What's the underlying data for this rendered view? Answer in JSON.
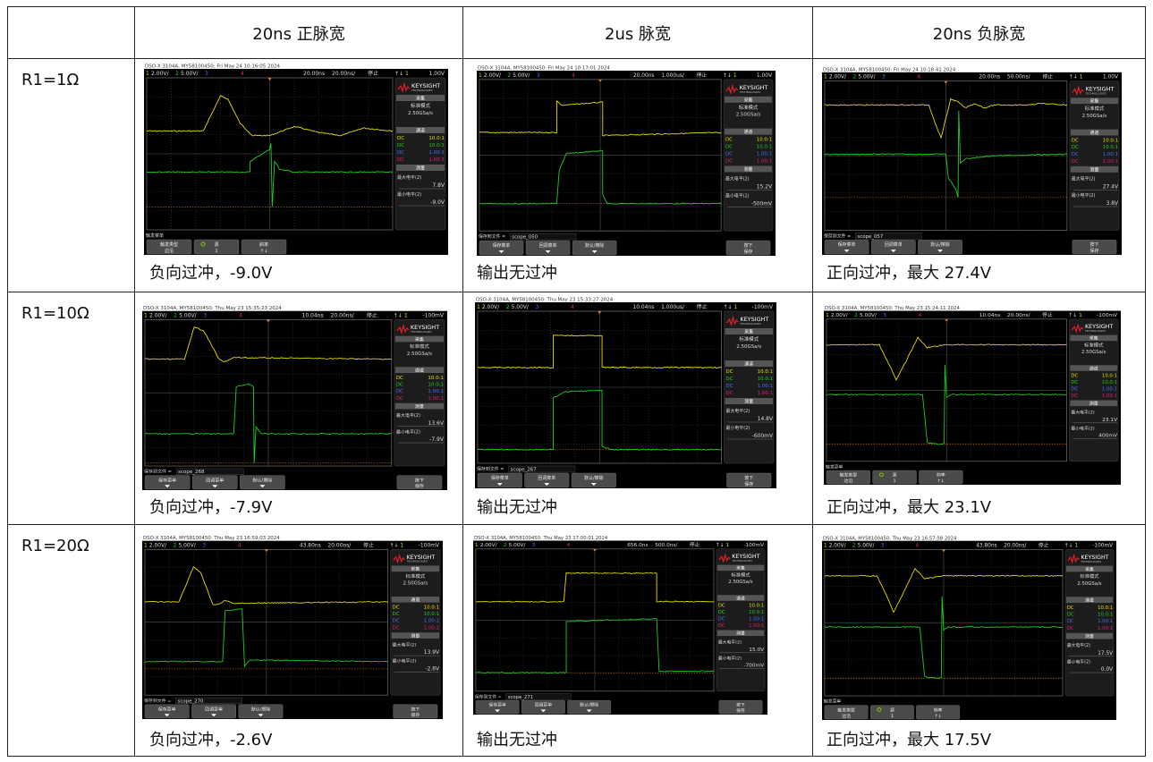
{
  "table": {
    "columns": [
      "",
      "20ns 正脉宽",
      "2us 脉宽",
      "20ns 负脉宽"
    ],
    "rows": [
      {
        "label": "R1=1Ω",
        "captions": [
          "负向过冲，-9.0V",
          "输出无过冲",
          "正向过冲，最大 27.4V"
        ]
      },
      {
        "label": "R1=10Ω",
        "captions": [
          "负向过冲，-7.9V",
          "输出无过冲",
          "正向过冲，最大 23.1V"
        ]
      },
      {
        "label": "R1=20Ω",
        "captions": [
          "负向过冲，-2.6V",
          "输出无过冲",
          "正向过冲，最大 17.5V"
        ]
      }
    ]
  },
  "scope_common": {
    "ch1_num": "1",
    "ch2_num": "2",
    "ch3_num": "3",
    "ch4_num": "4",
    "ch1_scale": "2.00V/",
    "ch2_scale": "5.00V/",
    "run_state": "停止",
    "trig_slope": "↑↓",
    "trig_ch": "1",
    "brand": "KEYSIGHT",
    "brand_sub": "TECHNOLOGIES",
    "acq_title": "采集",
    "acq_mode": "标准模式",
    "sample_rate": "2.50GSa/s",
    "channel_title": "通道",
    "channels": [
      {
        "coupling": "DC",
        "probe": "10.0:1",
        "color": "#e8e000"
      },
      {
        "coupling": "DC",
        "probe": "10.0:1",
        "color": "#22d022"
      },
      {
        "coupling": "DC",
        "probe": "1.00:1",
        "color": "#4a6cff"
      },
      {
        "coupling": "DC",
        "probe": "1.00:1",
        "color": "#e0207a"
      }
    ],
    "meas_title": "测量",
    "max_label": "最大电平(2)",
    "min_label": "最小电平(2)",
    "save_menu": {
      "file_label": "保存到文件 =",
      "keys": [
        "保存菜单",
        "回调菜单",
        "默认/擦除"
      ],
      "right_top": "按下",
      "right_bottom": "保存"
    },
    "trig_menu": {
      "title": "触发菜单",
      "keys": [
        [
          "触发类型",
          "边沿"
        ],
        [
          "源",
          "1"
        ],
        [
          "斜率",
          "↑↓"
        ]
      ]
    },
    "colors": {
      "ch1": "#e8e000",
      "ch2": "#22d022",
      "ground_ref": "#c06000"
    }
  },
  "scopes": [
    {
      "header": "DSO-X 3104A, MY58100450: Fri May 24 10:16:05 2024",
      "delay": "20.00ns",
      "time_div": "20.00ns/",
      "trig_level": "1.00V",
      "max": "7.8V",
      "min": "-9.0V",
      "menu": "trigger"
    },
    {
      "header": "DSO-X 3104A, MY58100450: Fri May 24 10:17:01 2024",
      "delay": "20.00ns",
      "time_div": "1.000us/",
      "trig_level": "1.00V",
      "max": "15.2V",
      "min": "-500mV",
      "menu": "save",
      "file": "scope_050"
    },
    {
      "header": "DSO-X 3104A, MY58100450: Fri May 24 10:18:41 2024",
      "delay": "20.00ns",
      "time_div": "50.00ns/",
      "trig_level": "1.00V",
      "max": "27.4V",
      "min": "3.8V",
      "menu": "save",
      "file": "scope_057"
    },
    {
      "header": "DSO-X 3104A, MY58100450: Thu May 23 15:35:23 2024",
      "delay": "10.04ns",
      "time_div": "20.00ns/",
      "trig_level": "-100mV",
      "max": "13.6V",
      "min": "-7.9V",
      "menu": "save",
      "file": "scope_268"
    },
    {
      "header": "DSO-X 3104A, MY58100450: Thu May 23 15:33:27 2024",
      "delay": "10.04ns",
      "time_div": "1.000us/",
      "trig_level": "-100mV",
      "max": "14.8V",
      "min": "-600mV",
      "menu": "save",
      "file": "scope_267"
    },
    {
      "header": "DSO-X 3104A, MY58100450: Thu May 23 15:24:11 2024",
      "delay": "10.04ns",
      "time_div": "20.00ns/",
      "trig_level": "-100mV",
      "max": "23.1V",
      "min": "400mV",
      "menu": "trigger"
    },
    {
      "header": "DSO-X 3104A, MY58100450: Thu May 23 16:59:03 2024",
      "delay": "43.80ns",
      "time_div": "20.00ns/",
      "trig_level": "-100mV",
      "max": "13.9V",
      "min": "-2.6V",
      "menu": "save",
      "file": "scope_270"
    },
    {
      "header": "DSO-X 3104A, MY58100450: Thu May 23 17:00:01 2024",
      "delay": "656.0ns",
      "time_div": "500.0ns/",
      "trig_level": "-100mV",
      "max": "15.0V",
      "min": "-700mV",
      "menu": "save",
      "file": "scope_271"
    },
    {
      "header": "DSO-X 3104A, MY58100450: Thu May 23 16:57:58 2024",
      "delay": "43.80ns",
      "time_div": "20.00ns/",
      "trig_level": "-100mV",
      "max": "17.5V",
      "min": "0.0V",
      "menu": "trigger"
    }
  ]
}
